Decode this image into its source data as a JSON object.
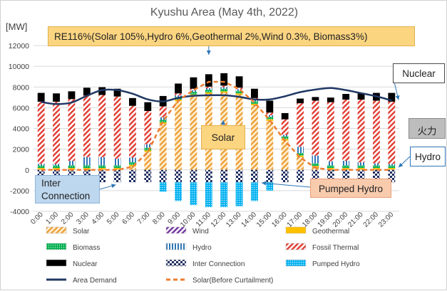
{
  "chart_data": {
    "type": "bar",
    "title": "Kyushu Area (May 4th, 2022)",
    "ylabel": "[MW]",
    "ylim": [
      -4000,
      12000
    ],
    "yticks": [
      -4000,
      -2000,
      0,
      2000,
      4000,
      6000,
      8000,
      10000,
      12000
    ],
    "categories": [
      "0:00",
      "1:00",
      "2:00",
      "3:00",
      "4:00",
      "5:00",
      "6:00",
      "7:00",
      "8:00",
      "9:00",
      "10:00",
      "11:00",
      "12:00",
      "13:00",
      "14:00",
      "15:00",
      "16:00",
      "17:00",
      "18:00",
      "19:00",
      "20:00",
      "21:00",
      "22:00",
      "23:00"
    ],
    "stack_series": [
      {
        "name": "Solar",
        "color": "#f2a33a",
        "pattern": "diag-orange",
        "values": [
          0,
          0,
          0,
          0,
          0,
          0,
          300,
          1700,
          4400,
          6600,
          7100,
          7300,
          7400,
          7200,
          6200,
          4700,
          2800,
          1200,
          200,
          0,
          0,
          0,
          0,
          0
        ]
      },
      {
        "name": "Wind",
        "color": "#7030a0",
        "pattern": "diag-purple",
        "values": [
          30,
          30,
          30,
          30,
          30,
          30,
          30,
          30,
          30,
          30,
          30,
          30,
          30,
          30,
          30,
          30,
          30,
          30,
          30,
          30,
          30,
          30,
          30,
          30
        ]
      },
      {
        "name": "Geothermal",
        "color": "#ffc000",
        "pattern": "solid",
        "values": [
          150,
          150,
          150,
          150,
          150,
          150,
          150,
          150,
          150,
          150,
          150,
          150,
          150,
          150,
          150,
          150,
          150,
          150,
          150,
          150,
          150,
          150,
          150,
          150
        ]
      },
      {
        "name": "Biomass",
        "color": "#00b050",
        "pattern": "dots-green",
        "values": [
          250,
          250,
          250,
          250,
          250,
          250,
          250,
          250,
          250,
          250,
          250,
          250,
          250,
          250,
          250,
          250,
          250,
          250,
          250,
          250,
          250,
          250,
          250,
          250
        ]
      },
      {
        "name": "Hydro",
        "color": "#2e75b6",
        "pattern": "vert-blue",
        "values": [
          150,
          150,
          450,
          800,
          800,
          650,
          450,
          350,
          250,
          150,
          150,
          150,
          150,
          150,
          150,
          150,
          150,
          600,
          750,
          400,
          450,
          300,
          200,
          150
        ]
      },
      {
        "name": "Fossil Thermal",
        "color": "#e03c31",
        "pattern": "diag-red",
        "values": [
          6000,
          6000,
          5950,
          5950,
          6000,
          6000,
          5000,
          3200,
          1050,
          200,
          150,
          150,
          150,
          150,
          150,
          250,
          1500,
          4200,
          5300,
          5700,
          5900,
          6050,
          6050,
          6000
        ]
      },
      {
        "name": "Nuclear",
        "color": "#000000",
        "pattern": "solid",
        "values": [
          850,
          800,
          750,
          750,
          750,
          750,
          750,
          850,
          1000,
          950,
          1100,
          1200,
          1200,
          1100,
          900,
          1150,
          600,
          450,
          350,
          450,
          550,
          650,
          750,
          850
        ]
      }
    ],
    "neg_series": [
      {
        "name": "Inter Connection",
        "color": "#1f2e60",
        "pattern": "checker",
        "values": [
          -900,
          -1200,
          -1200,
          -1200,
          -1200,
          -1200,
          -1200,
          -1200,
          -1200,
          -1200,
          -1200,
          -1200,
          -1200,
          -1200,
          -1200,
          -1200,
          -1200,
          -1200,
          -1200,
          -1200,
          -1200,
          -1200,
          -1200,
          -1200
        ]
      },
      {
        "name": "Pumped Hydro",
        "color": "#00b0f0",
        "pattern": "dots-cyan",
        "values": [
          0,
          0,
          0,
          0,
          0,
          0,
          0,
          0,
          -900,
          -1800,
          -2200,
          -2400,
          -2400,
          -2300,
          -1800,
          -800,
          0,
          0,
          0,
          0,
          0,
          0,
          0,
          0
        ]
      }
    ],
    "line_series": [
      {
        "name": "Area Demand",
        "color": "#203864",
        "style": "solid",
        "values": [
          6550,
          6350,
          6500,
          7150,
          7700,
          7700,
          7350,
          6800,
          6600,
          6950,
          7150,
          7200,
          7200,
          7050,
          6800,
          6800,
          7100,
          7500,
          7750,
          7900,
          7700,
          7400,
          7100,
          6700
        ]
      },
      {
        "name": "Solar(Before Curtailment)",
        "color": "#ed7d31",
        "style": "dashed",
        "values": [
          0,
          0,
          0,
          0,
          0,
          0,
          300,
          1700,
          4700,
          6700,
          7700,
          8500,
          8500,
          7800,
          6500,
          4800,
          2800,
          1200,
          200,
          0,
          0,
          0,
          0,
          0
        ]
      }
    ],
    "legend_order": [
      "Solar",
      "Wind",
      "Geothermal",
      "Biomass",
      "Hydro",
      "Fossil Thermal",
      "Nuclear",
      "Inter Connection",
      "Pumped Hydro",
      "Area Demand",
      "Solar(Before Curtailment)"
    ],
    "annotations": {
      "re_box": "RE116%(Solar 105%,Hydro  6%,Geothermal  2%,Wind 0.3%, Biomass3%)",
      "nuclear": "Nuclear",
      "thermal": "火力",
      "hydro": "Hydro",
      "solar": "Solar",
      "pumped": "Pumped  Hydro",
      "inter_line1": "Inter",
      "inter_line2": "Connection"
    }
  }
}
